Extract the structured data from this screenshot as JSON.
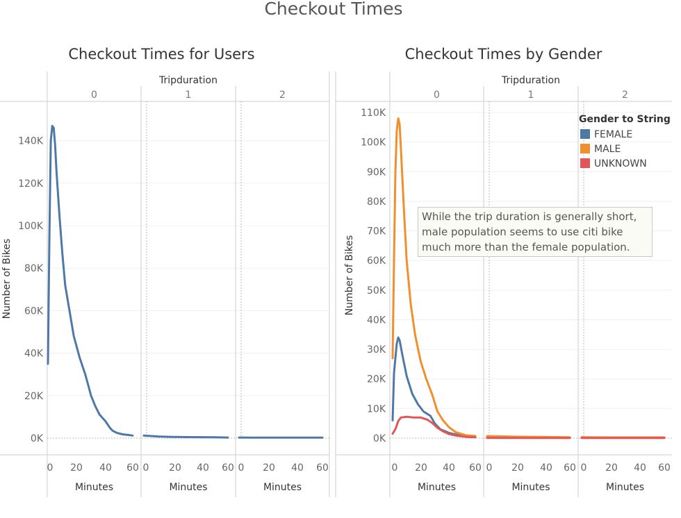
{
  "dashboard": {
    "title": "Checkout Times"
  },
  "colors": {
    "female": "#4e79a7",
    "male": "#f28e2b",
    "unknown": "#e15759",
    "axis": "#999999"
  },
  "annotation": "While the trip duration is generally short, male population seems to use citi bike much more than the female population.",
  "chart_data": [
    {
      "type": "line",
      "title": "Checkout Times for Users",
      "column_header": "Tripduration",
      "panels": [
        "0",
        "1",
        "2"
      ],
      "xlabel": "Minutes",
      "ylabel": "Number of Bikes",
      "xticks": [
        "0",
        "20",
        "40",
        "60"
      ],
      "yticks": [
        "0K",
        "20K",
        "40K",
        "60K",
        "80K",
        "100K",
        "120K",
        "140K"
      ],
      "ylim": [
        0,
        150000
      ],
      "xlim": [
        0,
        60
      ],
      "grid": true,
      "series": [
        {
          "color": "#4e79a7",
          "panel0": [
            [
              0,
              35000
            ],
            [
              1,
              95000
            ],
            [
              2,
              140000
            ],
            [
              3,
              147000
            ],
            [
              4,
              146000
            ],
            [
              5,
              138000
            ],
            [
              6,
              125000
            ],
            [
              8,
              105000
            ],
            [
              10,
              87000
            ],
            [
              12,
              72000
            ],
            [
              15,
              60000
            ],
            [
              18,
              48000
            ],
            [
              22,
              38000
            ],
            [
              26,
              30000
            ],
            [
              28,
              25000
            ],
            [
              30,
              20000
            ],
            [
              33,
              15000
            ],
            [
              36,
              11000
            ],
            [
              40,
              8000
            ],
            [
              43,
              5000
            ],
            [
              45,
              3500
            ],
            [
              48,
              2500
            ],
            [
              52,
              1800
            ],
            [
              56,
              1500
            ],
            [
              59,
              1200
            ]
          ],
          "panel1": [
            [
              0,
              1200
            ],
            [
              10,
              800
            ],
            [
              20,
              600
            ],
            [
              30,
              500
            ],
            [
              40,
              450
            ],
            [
              50,
              400
            ],
            [
              59,
              300
            ]
          ],
          "panel2": [
            [
              0,
              300
            ],
            [
              10,
              250
            ],
            [
              20,
              250
            ],
            [
              30,
              250
            ],
            [
              40,
              250
            ],
            [
              50,
              250
            ],
            [
              59,
              250
            ]
          ]
        }
      ]
    },
    {
      "type": "line",
      "title": "Checkout Times by Gender",
      "column_header": "Tripduration",
      "panels": [
        "0",
        "1",
        "2"
      ],
      "xlabel": "Minutes",
      "ylabel": "Number of Bikes",
      "xticks": [
        "0",
        "20",
        "40",
        "60"
      ],
      "yticks": [
        "0K",
        "10K",
        "20K",
        "30K",
        "40K",
        "50K",
        "60K",
        "70K",
        "80K",
        "90K",
        "100K",
        "110K"
      ],
      "ylim": [
        0,
        110000
      ],
      "xlim": [
        0,
        60
      ],
      "grid": true,
      "legend": {
        "title": "Gender to String",
        "placement": "top-right"
      },
      "series": [
        {
          "name": "FEMALE",
          "color": "#4e79a7",
          "panel0": [
            [
              0,
              6000
            ],
            [
              1,
              22000
            ],
            [
              3,
              32000
            ],
            [
              4,
              34000
            ],
            [
              5,
              33000
            ],
            [
              7,
              28000
            ],
            [
              10,
              21000
            ],
            [
              14,
              15000
            ],
            [
              18,
              11500
            ],
            [
              22,
              9000
            ],
            [
              27,
              7500
            ],
            [
              30,
              5000
            ],
            [
              34,
              3000
            ],
            [
              40,
              1800
            ],
            [
              47,
              1000
            ],
            [
              53,
              600
            ],
            [
              59,
              400
            ]
          ],
          "panel1": [
            [
              0,
              500
            ],
            [
              20,
              350
            ],
            [
              40,
              250
            ],
            [
              59,
              200
            ]
          ],
          "panel2": [
            [
              0,
              250
            ],
            [
              20,
              200
            ],
            [
              40,
              200
            ],
            [
              59,
              200
            ]
          ]
        },
        {
          "name": "MALE",
          "color": "#f28e2b",
          "panel0": [
            [
              0,
              27000
            ],
            [
              1,
              60000
            ],
            [
              2,
              90000
            ],
            [
              3,
              104000
            ],
            [
              4,
              108000
            ],
            [
              5,
              106000
            ],
            [
              6,
              97000
            ],
            [
              8,
              78000
            ],
            [
              10,
              60000
            ],
            [
              13,
              45000
            ],
            [
              16,
              35000
            ],
            [
              20,
              26000
            ],
            [
              24,
              20000
            ],
            [
              28,
              15000
            ],
            [
              32,
              9000
            ],
            [
              36,
              6000
            ],
            [
              40,
              3800
            ],
            [
              45,
              2000
            ],
            [
              52,
              1000
            ],
            [
              59,
              700
            ]
          ],
          "panel1": [
            [
              0,
              700
            ],
            [
              20,
              500
            ],
            [
              40,
              400
            ],
            [
              59,
              300
            ]
          ],
          "panel2": [
            [
              0,
              300
            ],
            [
              20,
              250
            ],
            [
              40,
              250
            ],
            [
              59,
              250
            ]
          ]
        },
        {
          "name": "UNKNOWN",
          "color": "#e15759",
          "panel0": [
            [
              0,
              1500
            ],
            [
              2,
              3000
            ],
            [
              4,
              5800
            ],
            [
              6,
              7000
            ],
            [
              10,
              7200
            ],
            [
              15,
              7000
            ],
            [
              20,
              7000
            ],
            [
              25,
              6200
            ],
            [
              28,
              5200
            ],
            [
              32,
              3500
            ],
            [
              36,
              2300
            ],
            [
              40,
              1400
            ],
            [
              46,
              800
            ],
            [
              53,
              400
            ],
            [
              59,
              300
            ]
          ],
          "panel1": [
            [
              0,
              100
            ],
            [
              30,
              80
            ],
            [
              59,
              60
            ]
          ],
          "panel2": [
            [
              0,
              60
            ],
            [
              30,
              50
            ],
            [
              59,
              50
            ]
          ]
        }
      ]
    }
  ]
}
